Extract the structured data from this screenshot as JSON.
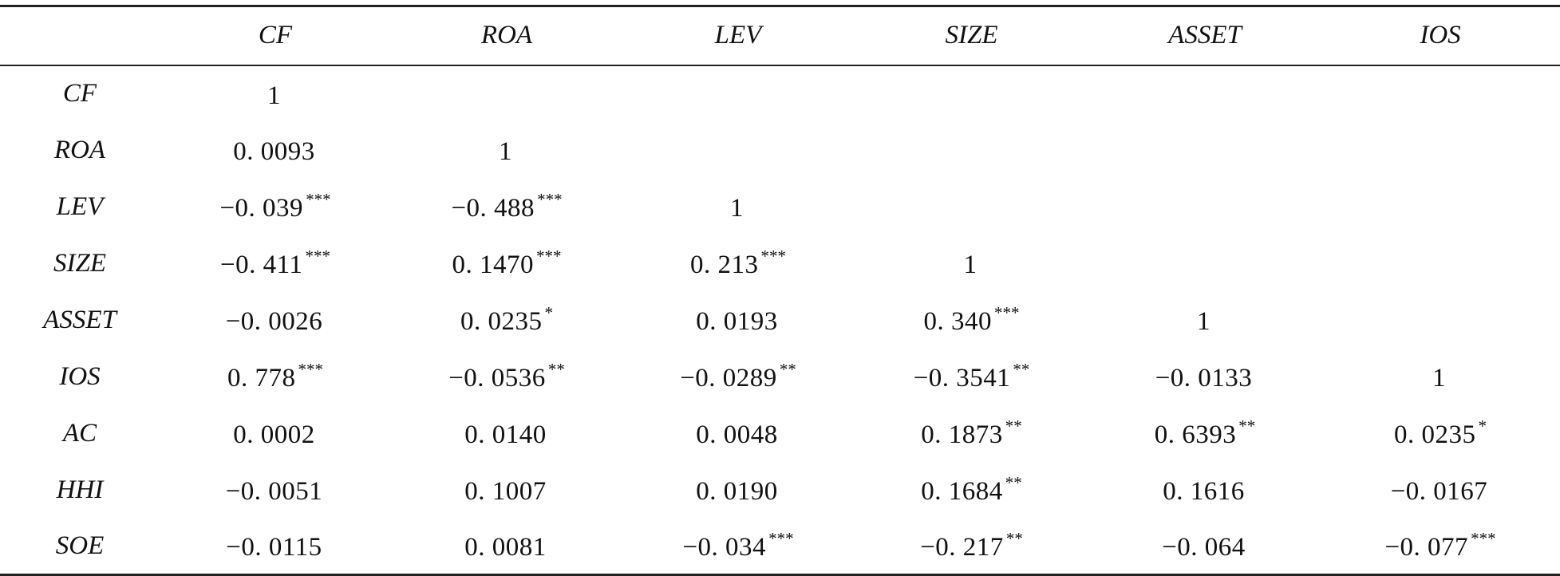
{
  "table": {
    "columns": [
      "",
      "CF",
      "ROA",
      "LEV",
      "SIZE",
      "ASSET",
      "IOS"
    ],
    "rows": [
      {
        "label": "CF",
        "cells": [
          {
            "v": "1",
            "s": ""
          },
          {
            "v": "",
            "s": ""
          },
          {
            "v": "",
            "s": ""
          },
          {
            "v": "",
            "s": ""
          },
          {
            "v": "",
            "s": ""
          },
          {
            "v": "",
            "s": ""
          }
        ]
      },
      {
        "label": "ROA",
        "cells": [
          {
            "v": "0. 0093",
            "s": ""
          },
          {
            "v": "1",
            "s": ""
          },
          {
            "v": "",
            "s": ""
          },
          {
            "v": "",
            "s": ""
          },
          {
            "v": "",
            "s": ""
          },
          {
            "v": "",
            "s": ""
          }
        ]
      },
      {
        "label": "LEV",
        "cells": [
          {
            "v": "−0. 039",
            "s": "***"
          },
          {
            "v": "−0. 488",
            "s": "***"
          },
          {
            "v": "1",
            "s": ""
          },
          {
            "v": "",
            "s": ""
          },
          {
            "v": "",
            "s": ""
          },
          {
            "v": "",
            "s": ""
          }
        ]
      },
      {
        "label": "SIZE",
        "cells": [
          {
            "v": "−0. 411",
            "s": "***"
          },
          {
            "v": "0. 1470",
            "s": "***"
          },
          {
            "v": "0. 213",
            "s": "***"
          },
          {
            "v": "1",
            "s": ""
          },
          {
            "v": "",
            "s": ""
          },
          {
            "v": "",
            "s": ""
          }
        ]
      },
      {
        "label": "ASSET",
        "cells": [
          {
            "v": "−0. 0026",
            "s": ""
          },
          {
            "v": "0. 0235",
            "s": "*"
          },
          {
            "v": "0. 0193",
            "s": ""
          },
          {
            "v": "0. 340",
            "s": "***"
          },
          {
            "v": "1",
            "s": ""
          },
          {
            "v": "",
            "s": ""
          }
        ]
      },
      {
        "label": "IOS",
        "cells": [
          {
            "v": "0. 778",
            "s": "***"
          },
          {
            "v": "−0. 0536",
            "s": "**"
          },
          {
            "v": "−0. 0289",
            "s": "**"
          },
          {
            "v": "−0. 3541",
            "s": "**"
          },
          {
            "v": "−0. 0133",
            "s": ""
          },
          {
            "v": "1",
            "s": ""
          }
        ]
      },
      {
        "label": "AC",
        "cells": [
          {
            "v": "0. 0002",
            "s": ""
          },
          {
            "v": "0. 0140",
            "s": ""
          },
          {
            "v": "0. 0048",
            "s": ""
          },
          {
            "v": "0. 1873",
            "s": "**"
          },
          {
            "v": "0. 6393",
            "s": "**"
          },
          {
            "v": "0. 0235",
            "s": "*"
          }
        ]
      },
      {
        "label": "HHI",
        "cells": [
          {
            "v": "−0. 0051",
            "s": ""
          },
          {
            "v": "0. 1007",
            "s": ""
          },
          {
            "v": "0. 0190",
            "s": ""
          },
          {
            "v": "0. 1684",
            "s": "**"
          },
          {
            "v": "0. 1616",
            "s": ""
          },
          {
            "v": "−0. 0167",
            "s": ""
          }
        ]
      },
      {
        "label": "SOE",
        "cells": [
          {
            "v": "−0. 0115",
            "s": ""
          },
          {
            "v": "0. 0081",
            "s": ""
          },
          {
            "v": "−0. 034",
            "s": "***"
          },
          {
            "v": "−0. 217",
            "s": "**"
          },
          {
            "v": "−0. 064",
            "s": ""
          },
          {
            "v": "−0. 077",
            "s": "***"
          }
        ]
      }
    ]
  }
}
